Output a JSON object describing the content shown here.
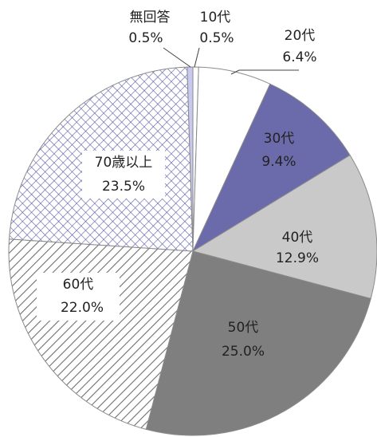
{
  "chart_data": {
    "type": "pie",
    "categories": [
      "10代",
      "20代",
      "30代",
      "40代",
      "50代",
      "60代",
      "70歳以上",
      "無回答"
    ],
    "values": [
      0.5,
      6.4,
      9.4,
      12.9,
      25.0,
      22.0,
      23.5,
      0.5
    ],
    "value_labels": [
      "0.5%",
      "6.4%",
      "9.4%",
      "12.9%",
      "25.0%",
      "22.0%",
      "23.5%",
      "0.5%"
    ],
    "colors": [
      "#ffffff",
      "#ffffff",
      "#6b6bab",
      "#c9c9c9",
      "#7f7f7f",
      "#6f6f6f",
      "#5a5aa8",
      "#c8c8f0"
    ],
    "patterns": [
      "solid",
      "solid",
      "solid",
      "solid",
      "solid",
      "diagonal",
      "crosshatch",
      "solid"
    ],
    "start_angle": 0,
    "direction": "clockwise"
  }
}
